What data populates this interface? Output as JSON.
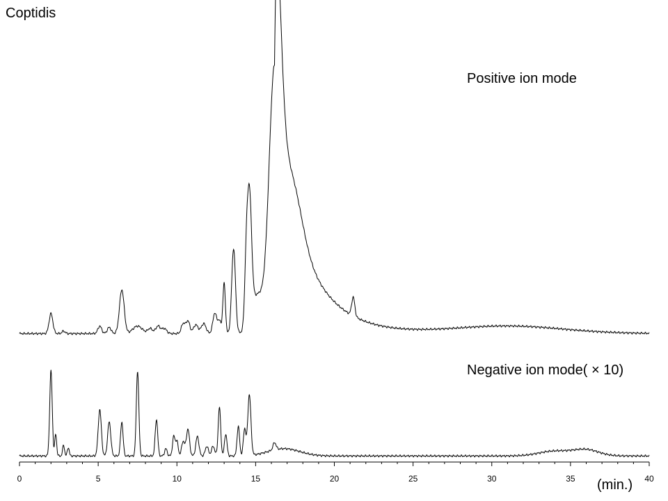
{
  "chart_data": {
    "type": "line",
    "title": "Coptidis",
    "xunit": "(min.)",
    "xlim": [
      0,
      40
    ],
    "xticks": [
      0,
      5,
      10,
      15,
      20,
      25,
      30,
      35,
      40
    ],
    "grid": false,
    "series": [
      {
        "name": "Positive ion mode",
        "color": "#000000",
        "baseline": 2,
        "peaks": [
          [
            2.0,
            16,
            0.12
          ],
          [
            2.8,
            2,
            0.1
          ],
          [
            5.1,
            6,
            0.12
          ],
          [
            5.7,
            5,
            0.12
          ],
          [
            6.5,
            35,
            0.15
          ],
          [
            7.5,
            6,
            0.3
          ],
          [
            8.3,
            4,
            0.15
          ],
          [
            8.8,
            6,
            0.15
          ],
          [
            9.2,
            4,
            0.15
          ],
          [
            10.4,
            8,
            0.12
          ],
          [
            10.7,
            10,
            0.12
          ],
          [
            11.2,
            7,
            0.15
          ],
          [
            11.7,
            8,
            0.15
          ],
          [
            12.4,
            16,
            0.12
          ],
          [
            12.7,
            10,
            0.12
          ],
          [
            13.0,
            40,
            0.08
          ],
          [
            13.6,
            68,
            0.12
          ],
          [
            14.4,
            40,
            0.1
          ],
          [
            14.6,
            100,
            0.14
          ],
          [
            15.1,
            30,
            0.4
          ],
          [
            16.2,
            210,
            0.35
          ],
          [
            17.4,
            30,
            0.6
          ],
          [
            21.2,
            15,
            0.1
          ],
          [
            31.0,
            6,
            3.5
          ]
        ],
        "tail": {
          "from": 16.2,
          "amp": 170,
          "decay": 2.0
        }
      },
      {
        "name": "Negative ion mode( × 10)",
        "color": "#000000",
        "baseline": 1,
        "peaks": [
          [
            2.0,
            70,
            0.08
          ],
          [
            2.3,
            18,
            0.06
          ],
          [
            2.8,
            9,
            0.06
          ],
          [
            3.1,
            7,
            0.06
          ],
          [
            5.1,
            38,
            0.1
          ],
          [
            5.7,
            28,
            0.1
          ],
          [
            6.5,
            28,
            0.08
          ],
          [
            7.5,
            70,
            0.08
          ],
          [
            8.7,
            30,
            0.08
          ],
          [
            9.3,
            6,
            0.08
          ],
          [
            9.8,
            16,
            0.08
          ],
          [
            10.0,
            12,
            0.08
          ],
          [
            10.4,
            12,
            0.1
          ],
          [
            10.7,
            22,
            0.1
          ],
          [
            11.3,
            16,
            0.1
          ],
          [
            11.9,
            8,
            0.1
          ],
          [
            12.3,
            8,
            0.1
          ],
          [
            12.7,
            40,
            0.08
          ],
          [
            13.1,
            18,
            0.08
          ],
          [
            13.9,
            24,
            0.08
          ],
          [
            14.3,
            22,
            0.08
          ],
          [
            14.6,
            50,
            0.1
          ],
          [
            16.2,
            6,
            0.1
          ],
          [
            16.8,
            6,
            1.0
          ],
          [
            34.0,
            4,
            1.0
          ],
          [
            36.0,
            5,
            0.8
          ]
        ]
      }
    ]
  }
}
